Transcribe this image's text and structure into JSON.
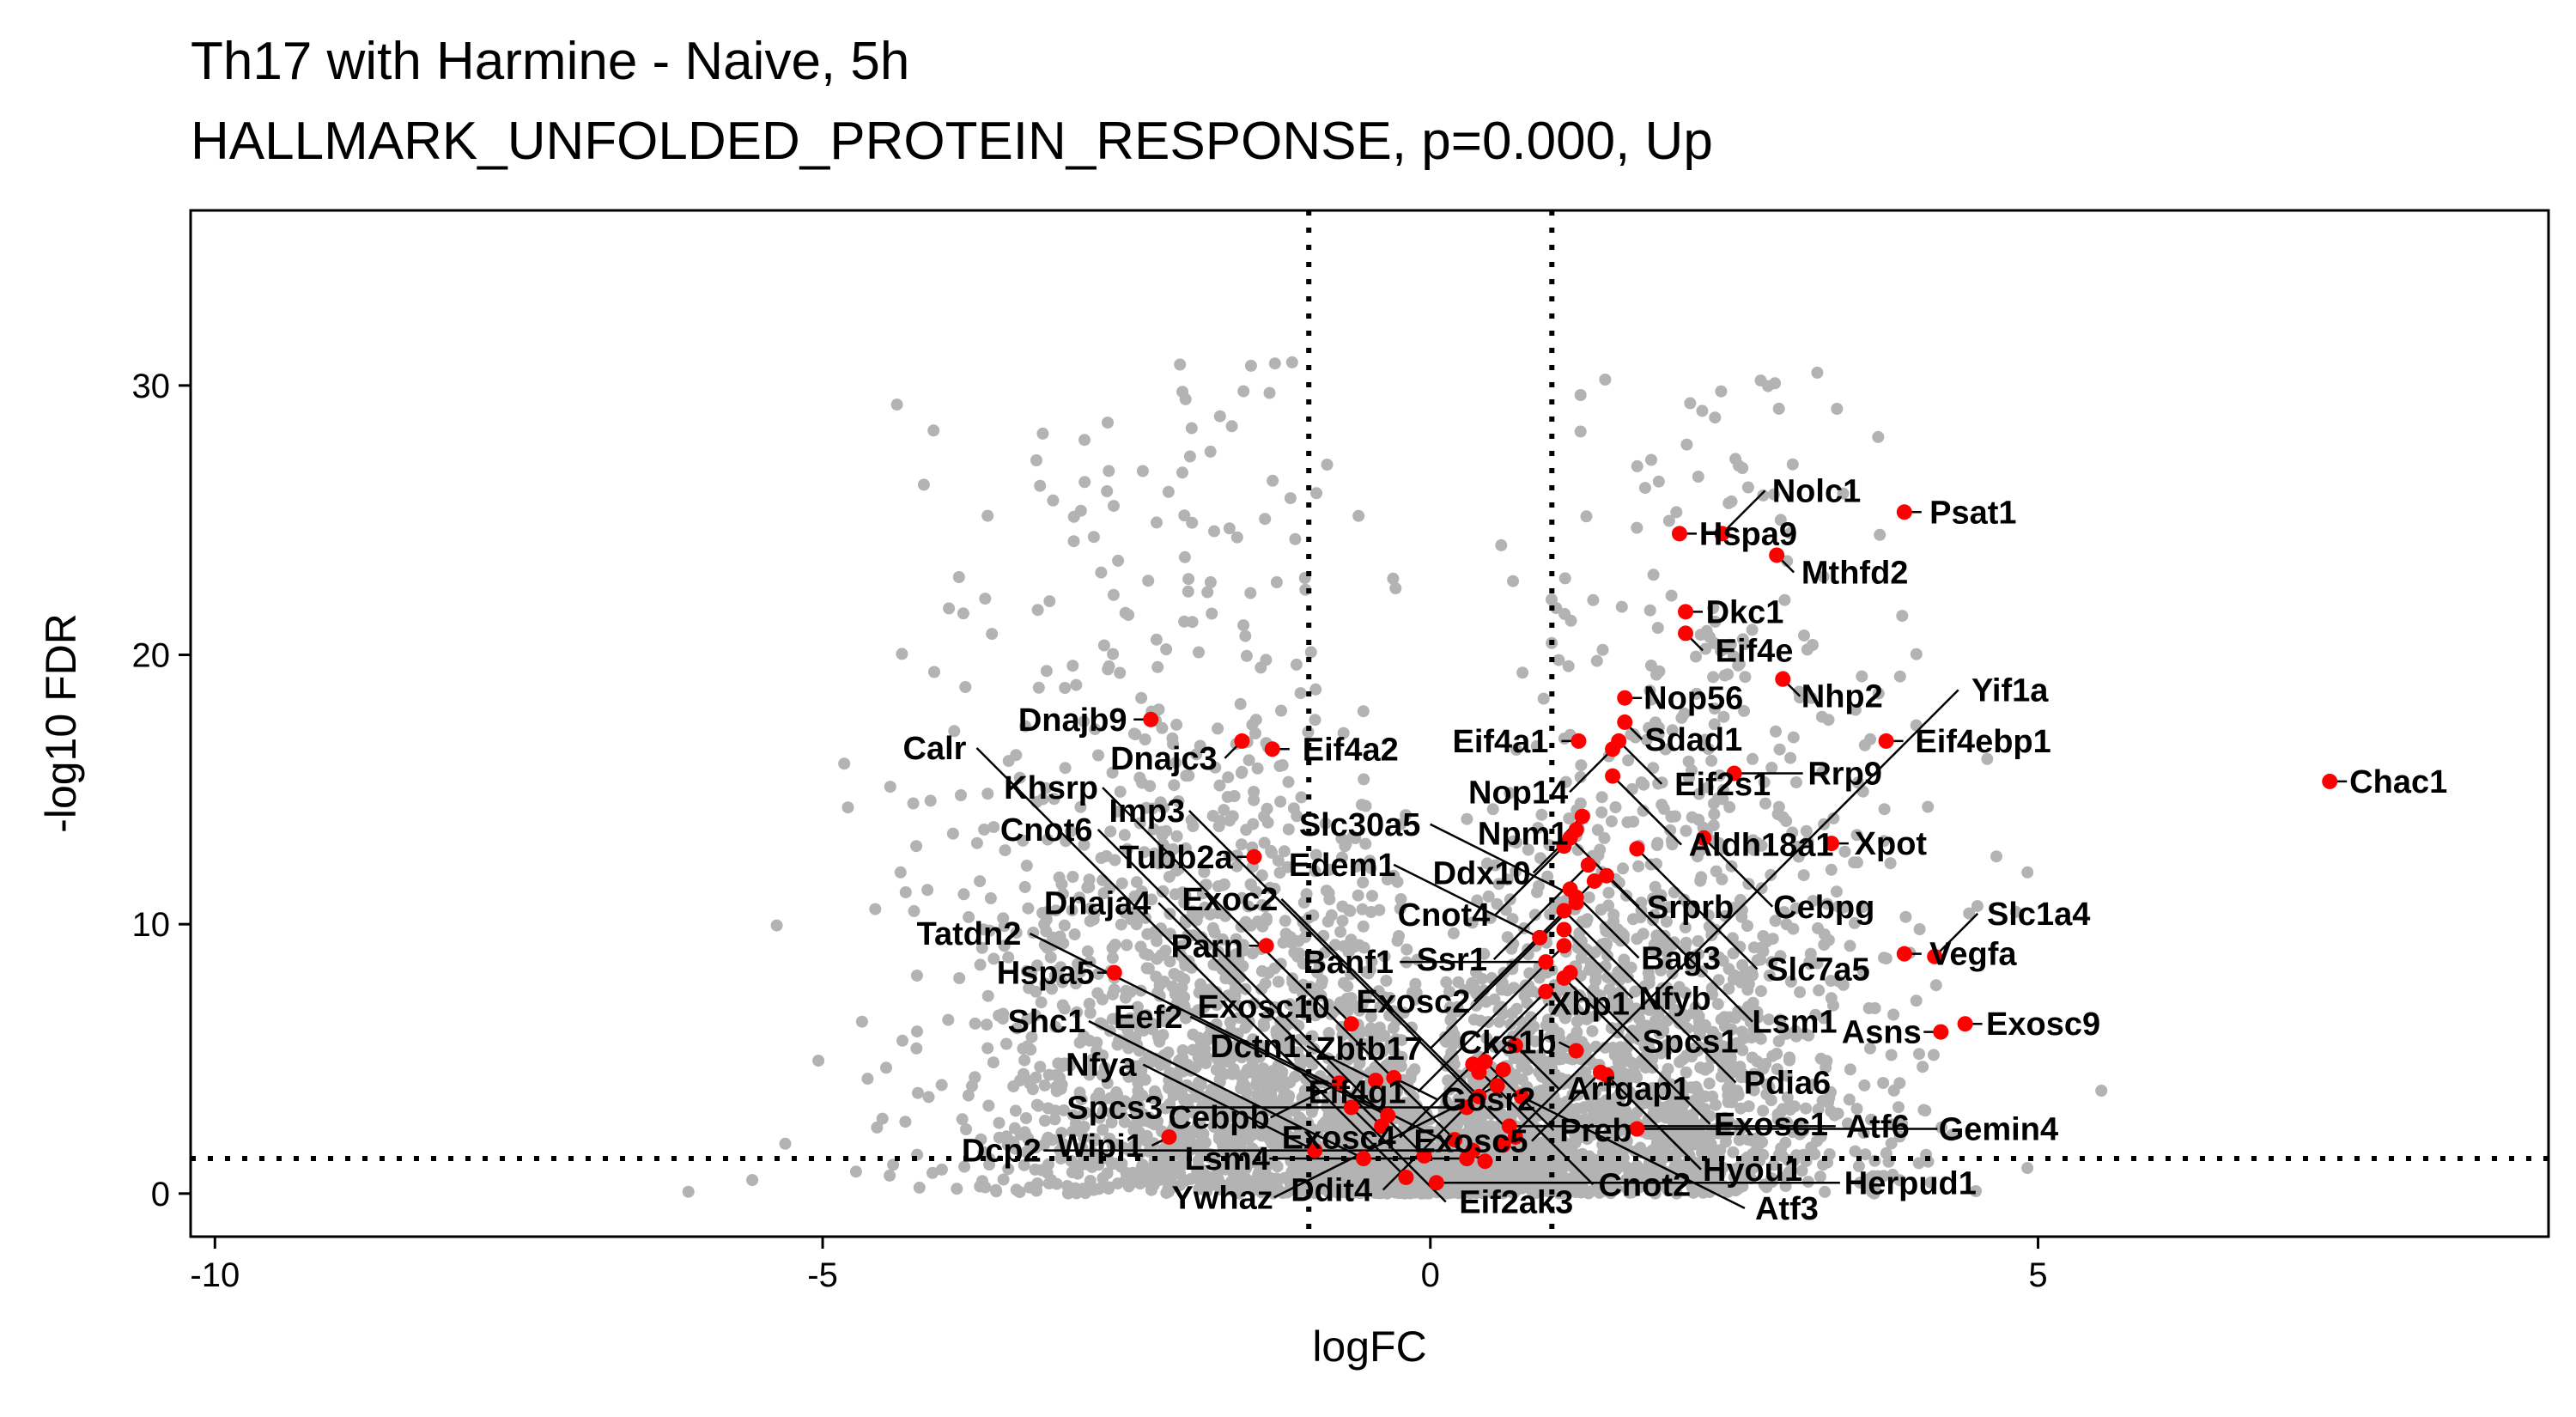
{
  "chart_data": {
    "type": "scatter",
    "title": "Th17 with Harmine - Naive, 5h",
    "subtitle": "HALLMARK_UNFOLDED_PROTEIN_RESPONSE, p=0.000, Up",
    "xlabel": "logFC",
    "ylabel": "-log10 FDR",
    "xlim": [
      -10.2,
      9.2
    ],
    "ylim": [
      -1.6,
      36.5
    ],
    "xticks": [
      -10,
      -5,
      0,
      5
    ],
    "yticks": [
      0,
      10,
      20,
      30
    ],
    "grid": false,
    "legend": "none",
    "reference_lines": {
      "vertical": [
        -1,
        1
      ],
      "horizontal": [
        1.3
      ],
      "style": "dotted"
    },
    "colors": {
      "background_points": "#b3b3b3",
      "highlight_points": "#ff0000",
      "lines": "#000000"
    },
    "highlighted_genes": [
      {
        "gene": "Psat1",
        "x": 3.9,
        "y": 25.3
      },
      {
        "gene": "Hspa9",
        "x": 2.05,
        "y": 24.5
      },
      {
        "gene": "Nolc1",
        "x": 2.4,
        "y": 24.5
      },
      {
        "gene": "Mthfd2",
        "x": 2.85,
        "y": 23.7
      },
      {
        "gene": "Dkc1",
        "x": 2.1,
        "y": 21.6
      },
      {
        "gene": "Eif4e",
        "x": 2.1,
        "y": 20.8
      },
      {
        "gene": "Nhp2",
        "x": 2.9,
        "y": 19.1
      },
      {
        "gene": "Nop56",
        "x": 1.6,
        "y": 18.4
      },
      {
        "gene": "Nop14",
        "x": 1.5,
        "y": 16.5
      },
      {
        "gene": "Sdad1",
        "x": 1.6,
        "y": 17.5
      },
      {
        "gene": "Eif4ebp1",
        "x": 3.75,
        "y": 16.8
      },
      {
        "gene": "Eif4a1",
        "x": 1.22,
        "y": 16.8
      },
      {
        "gene": "Eif2s1",
        "x": 1.55,
        "y": 16.8
      },
      {
        "gene": "Rrp9",
        "x": 2.5,
        "y": 15.6
      },
      {
        "gene": "Aldh18a1",
        "x": 1.5,
        "y": 15.5
      },
      {
        "gene": "Npm1",
        "x": 1.25,
        "y": 14.0
      },
      {
        "gene": "Ddx10",
        "x": 1.2,
        "y": 13.5
      },
      {
        "gene": "Cnot4",
        "x": 1.1,
        "y": 12.9
      },
      {
        "gene": "Srprb",
        "x": 1.15,
        "y": 13.2
      },
      {
        "gene": "Ssr1",
        "x": 1.3,
        "y": 12.2
      },
      {
        "gene": "Cebpg",
        "x": 2.25,
        "y": 13.2
      },
      {
        "gene": "Xpot",
        "x": 3.3,
        "y": 13.0
      },
      {
        "gene": "Chac1",
        "x": 7.4,
        "y": 15.3
      },
      {
        "gene": "Slc7a5",
        "x": 1.7,
        "y": 12.8
      },
      {
        "gene": "Exosc2",
        "x": 1.35,
        "y": 11.6
      },
      {
        "gene": "Lsm1",
        "x": 1.45,
        "y": 11.8
      },
      {
        "gene": "Dnajc3",
        "x": -1.55,
        "y": 16.8
      },
      {
        "gene": "Dnajb9",
        "x": -2.3,
        "y": 17.6
      },
      {
        "gene": "Eif4a2",
        "x": -1.3,
        "y": 16.5
      },
      {
        "gene": "Tubb2a",
        "x": -1.45,
        "y": 12.5
      },
      {
        "gene": "Slc30a5",
        "x": 1.2,
        "y": 11.0
      },
      {
        "gene": "Pdia6",
        "x": 1.1,
        "y": 10.5
      },
      {
        "gene": "Parn",
        "x": -1.35,
        "y": 9.2
      },
      {
        "gene": "Zbtb17",
        "x": 1.2,
        "y": 10.8
      },
      {
        "gene": "Bag3",
        "x": 1.15,
        "y": 11.3
      },
      {
        "gene": "Nfyb",
        "x": 1.1,
        "y": 9.8
      },
      {
        "gene": "Eif4g1",
        "x": 1.1,
        "y": 9.2
      },
      {
        "gene": "Vegfa",
        "x": 3.9,
        "y": 8.9
      },
      {
        "gene": "Slc1a4",
        "x": 4.15,
        "y": 8.8
      },
      {
        "gene": "Hspa5",
        "x": -2.6,
        "y": 8.2
      },
      {
        "gene": "Edem1",
        "x": 0.9,
        "y": 9.5
      },
      {
        "gene": "Banf1",
        "x": 0.95,
        "y": 8.6
      },
      {
        "gene": "Preb",
        "x": 0.45,
        "y": 4.9
      },
      {
        "gene": "Spcs1",
        "x": 1.15,
        "y": 8.2
      },
      {
        "gene": "Exosc1",
        "x": 1.1,
        "y": 8.0
      },
      {
        "gene": "Exosc4",
        "x": 0.95,
        "y": 7.5
      },
      {
        "gene": "Arfgap1",
        "x": 0.7,
        "y": 5.5
      },
      {
        "gene": "Xbp1",
        "x": 0.4,
        "y": 4.5
      },
      {
        "gene": "Cnot2",
        "x": 0.35,
        "y": 4.8
      },
      {
        "gene": "Exosc10",
        "x": -0.65,
        "y": 6.3
      },
      {
        "gene": "Exosc9",
        "x": 4.4,
        "y": 6.3
      },
      {
        "gene": "Cks1b",
        "x": 1.2,
        "y": 5.3
      },
      {
        "gene": "Asns",
        "x": 4.2,
        "y": 6.0
      },
      {
        "gene": "Dctn1",
        "x": -0.45,
        "y": 4.2
      },
      {
        "gene": "Cebpb",
        "x": -0.75,
        "y": 4.1
      },
      {
        "gene": "Gosr2",
        "x": -0.3,
        "y": 4.3
      },
      {
        "gene": "Exoc2",
        "x": 0.4,
        "y": 3.6
      },
      {
        "gene": "Eif2ak3",
        "x": -0.65,
        "y": 3.2
      },
      {
        "gene": "Ywhaz",
        "x": 0.55,
        "y": 4.0
      },
      {
        "gene": "Atf3",
        "x": 0.75,
        "y": 3.6
      },
      {
        "gene": "Exosc5",
        "x": 1.4,
        "y": 4.5
      },
      {
        "gene": "Hyou1",
        "x": 1.45,
        "y": 4.4
      },
      {
        "gene": "Ddit4",
        "x": 0.6,
        "y": 4.6
      },
      {
        "gene": "Spcs3",
        "x": 0.3,
        "y": 3.2
      },
      {
        "gene": "Eef2",
        "x": -0.35,
        "y": 2.9
      },
      {
        "gene": "Wipi1",
        "x": -2.15,
        "y": 2.1
      },
      {
        "gene": "Dnaja4",
        "x": -0.4,
        "y": 2.5
      },
      {
        "gene": "Gemin4",
        "x": 1.7,
        "y": 2.4
      },
      {
        "gene": "Imp3",
        "x": 0.7,
        "y": 2.1
      },
      {
        "gene": "Khsrp",
        "x": 0.2,
        "y": 2.0
      },
      {
        "gene": "Atf6",
        "x": 0.65,
        "y": 2.5
      },
      {
        "gene": "Cnot6",
        "x": -0.05,
        "y": 1.4
      },
      {
        "gene": "Lsm4",
        "x": 0.3,
        "y": 1.3
      },
      {
        "gene": "Nfya",
        "x": -0.95,
        "y": 1.6
      },
      {
        "gene": "Shc1",
        "x": -0.55,
        "y": 1.3
      },
      {
        "gene": "Calr",
        "x": -0.2,
        "y": 0.6
      },
      {
        "gene": "Herpud1",
        "x": 0.05,
        "y": 0.4
      },
      {
        "gene": "Dcp2",
        "x": 0.35,
        "y": 1.6
      },
      {
        "gene": "Tatdn2",
        "x": 0.45,
        "y": 1.2
      },
      {
        "gene": "Yif1a",
        "x": 0.6,
        "y": 1.8
      }
    ]
  }
}
